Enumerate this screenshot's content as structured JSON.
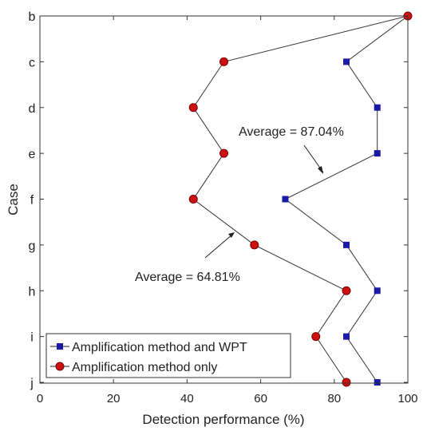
{
  "chart_data": {
    "type": "line",
    "xlabel": "Detection performance (%)",
    "ylabel": "Case",
    "xlim": [
      0,
      100
    ],
    "xticks": [
      0,
      20,
      40,
      60,
      80,
      100
    ],
    "categories": [
      "b",
      "c",
      "d",
      "e",
      "f",
      "g",
      "h",
      "i",
      "j"
    ],
    "grid": false,
    "legend_position": "bottom-left",
    "series": [
      {
        "name": "Amplification method and WPT",
        "marker": "square",
        "color": "#1a1aa6",
        "values": [
          100,
          83.3,
          91.7,
          91.7,
          66.7,
          83.3,
          91.7,
          83.3,
          91.7
        ]
      },
      {
        "name": "Amplification method only",
        "marker": "circle",
        "color": "#cc1111",
        "values": [
          100,
          50,
          41.7,
          50,
          41.7,
          58.3,
          83.3,
          75,
          83.3
        ]
      }
    ],
    "annotations": [
      {
        "text": "Average = 87.04%"
      },
      {
        "text": "Average = 64.81%"
      }
    ]
  }
}
